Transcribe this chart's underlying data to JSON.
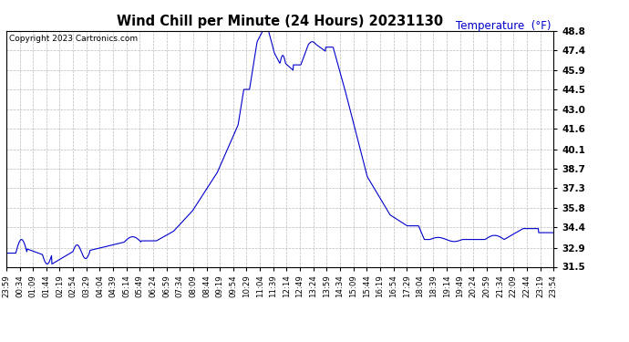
{
  "title": "Wind Chill per Minute (24 Hours) 20231130",
  "temp_label": "Temperature  (°F)",
  "copyright": "Copyright 2023 Cartronics.com",
  "line_color": "#0000cc",
  "label_color": "#0000cc",
  "background_color": "#ffffff",
  "grid_color": "#aaaaaa",
  "ylim": [
    31.5,
    48.8
  ],
  "yticks": [
    31.5,
    32.9,
    34.4,
    35.8,
    37.3,
    38.7,
    40.1,
    41.6,
    43.0,
    44.5,
    45.9,
    47.4,
    48.8
  ],
  "x_labels": [
    "23:59",
    "00:34",
    "01:09",
    "01:44",
    "02:19",
    "02:54",
    "03:29",
    "04:04",
    "04:39",
    "05:14",
    "05:49",
    "06:24",
    "06:59",
    "07:34",
    "08:09",
    "08:44",
    "09:19",
    "09:54",
    "10:29",
    "11:04",
    "11:39",
    "12:14",
    "12:49",
    "13:24",
    "13:59",
    "14:34",
    "15:09",
    "15:44",
    "16:19",
    "16:54",
    "17:29",
    "18:04",
    "18:39",
    "19:14",
    "19:49",
    "20:24",
    "20:59",
    "21:34",
    "22:09",
    "22:44",
    "23:19",
    "23:54"
  ],
  "figsize": [
    6.9,
    3.75
  ],
  "dpi": 100
}
